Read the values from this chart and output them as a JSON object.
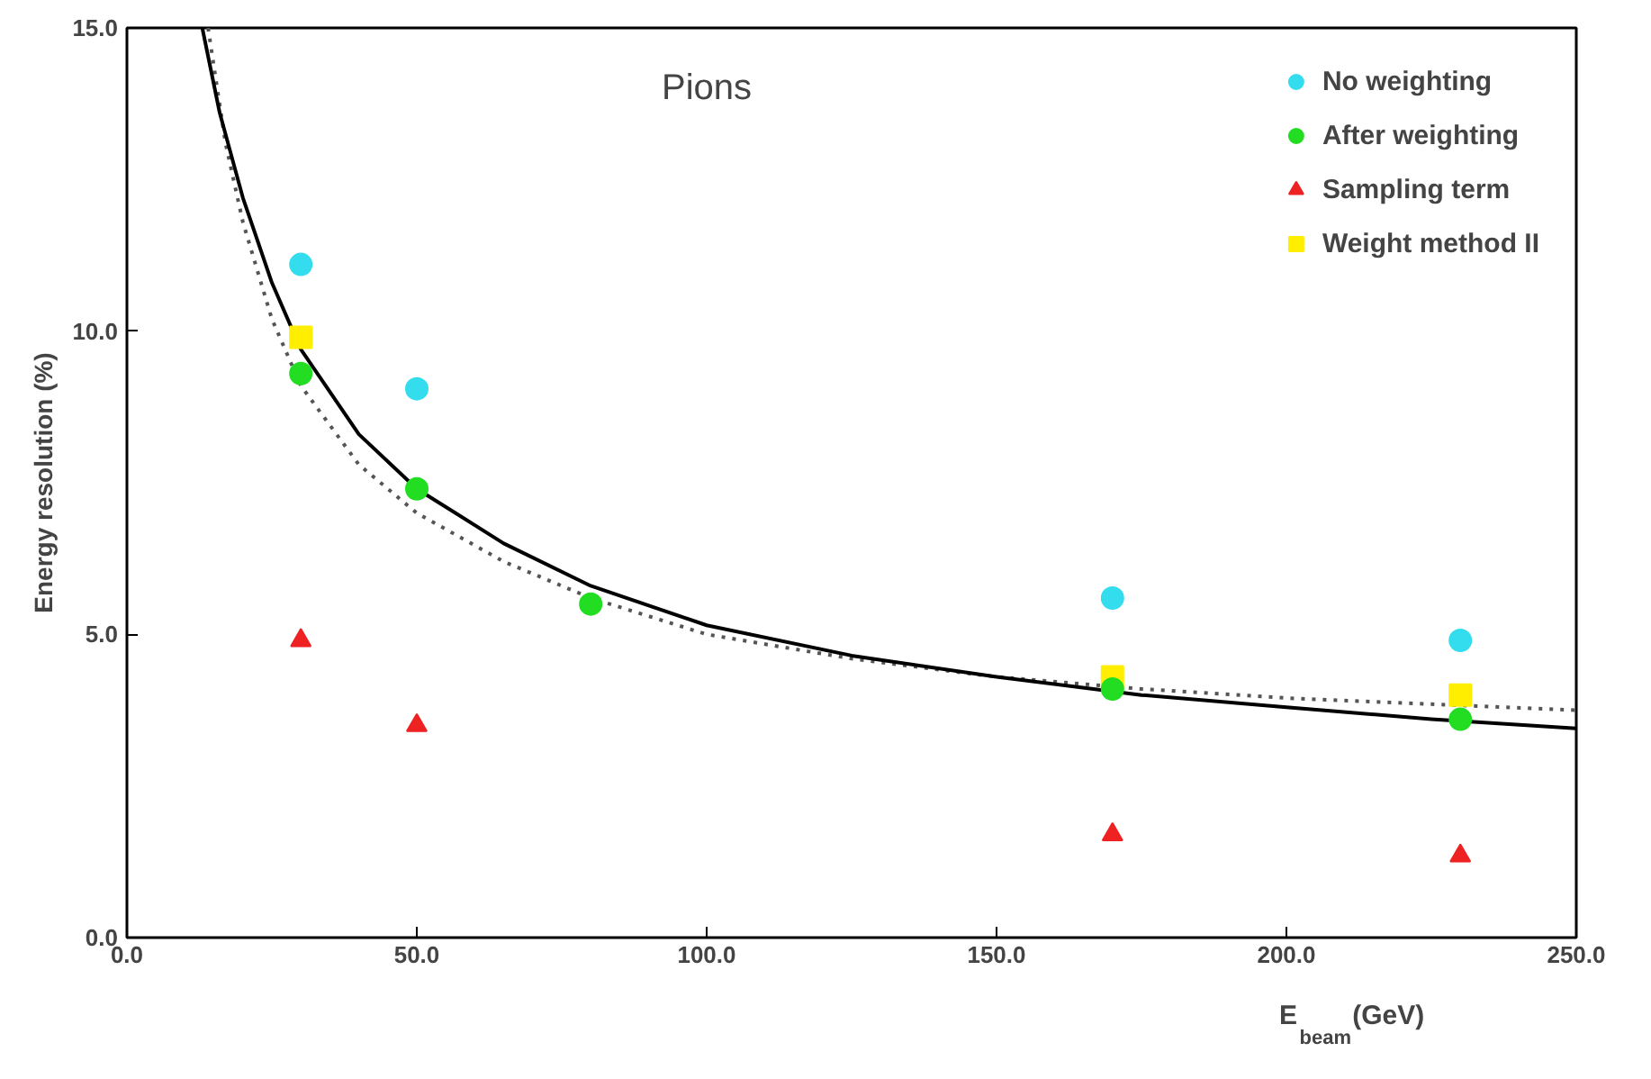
{
  "chart_data": {
    "type": "scatter",
    "title": "Pions",
    "xlabel": "E$_{beam}$ (GeV)",
    "ylabel": "Energy resolution (%)",
    "xlim": [
      0,
      250
    ],
    "ylim": [
      0,
      15
    ],
    "xticks": [
      {
        "value": 0,
        "label": "0.0"
      },
      {
        "value": 50,
        "label": "50.0"
      },
      {
        "value": 100,
        "label": "100.0"
      },
      {
        "value": 150,
        "label": "150.0"
      },
      {
        "value": 200,
        "label": "200.0"
      },
      {
        "value": 250,
        "label": "250.0"
      }
    ],
    "yticks": [
      {
        "value": 0,
        "label": "0.0"
      },
      {
        "value": 5,
        "label": "5.0"
      },
      {
        "value": 10,
        "label": "10.0"
      },
      {
        "value": 15,
        "label": "15.0"
      }
    ],
    "grid": false,
    "legend": "top right",
    "series": [
      {
        "name": "No weighting",
        "color": "#33ddee",
        "marker": "circle",
        "x": [
          30,
          50,
          170,
          230
        ],
        "values": [
          11.1,
          9.05,
          5.6,
          4.9
        ]
      },
      {
        "name": "After weighting",
        "color": "#22dd22",
        "marker": "circle",
        "x": [
          30,
          50,
          80,
          170,
          230
        ],
        "values": [
          9.3,
          7.4,
          5.5,
          4.1,
          3.6
        ]
      },
      {
        "name": "Sampling term",
        "color": "#ee2222",
        "marker": "triangle",
        "x": [
          30,
          50,
          170,
          230
        ],
        "values": [
          4.9,
          3.5,
          1.7,
          1.35
        ]
      },
      {
        "name": "Weight method II",
        "color": "#ffee00",
        "marker": "square",
        "x": [
          30,
          170,
          230
        ],
        "values": [
          9.9,
          4.3,
          4.0
        ]
      },
      {
        "type": "line",
        "color": "#000000",
        "line_style": "solid",
        "x": [
          13,
          16,
          20,
          25,
          30,
          40,
          50,
          65,
          80,
          100,
          125,
          150,
          175,
          200,
          225,
          250
        ],
        "values": [
          15,
          13.6,
          12.2,
          10.8,
          9.7,
          8.3,
          7.4,
          6.5,
          5.8,
          5.15,
          4.65,
          4.3,
          4.0,
          3.8,
          3.6,
          3.45
        ]
      },
      {
        "type": "line",
        "color": "#555555",
        "line_style": "dotted",
        "x": [
          14,
          17,
          20,
          25,
          30,
          40,
          50,
          65,
          80,
          100,
          125,
          150,
          175,
          200,
          225,
          250
        ],
        "values": [
          15,
          13.1,
          11.8,
          10.2,
          9.1,
          7.8,
          7.0,
          6.2,
          5.6,
          5.0,
          4.6,
          4.3,
          4.1,
          3.95,
          3.85,
          3.75
        ]
      }
    ]
  }
}
